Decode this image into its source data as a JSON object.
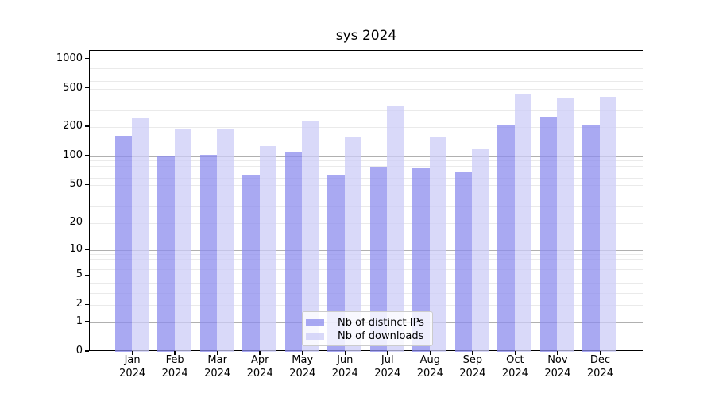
{
  "chart_data": {
    "type": "bar",
    "title": "sys 2024",
    "categories": [
      "Jan",
      "Feb",
      "Mar",
      "Apr",
      "May",
      "Jun",
      "Jul",
      "Aug",
      "Sep",
      "Oct",
      "Nov",
      "Dec"
    ],
    "x_tick_second_line": "2024",
    "series": [
      {
        "name": "Nb of distinct IPs",
        "color": "#8c8cee",
        "alpha": 0.75,
        "values": [
          163,
          100,
          104,
          65,
          109,
          65,
          78,
          75,
          70,
          212,
          257,
          213
        ]
      },
      {
        "name": "Nb of downloads",
        "color": "#ccccf7",
        "alpha": 0.75,
        "values": [
          251,
          188,
          190,
          127,
          230,
          157,
          330,
          158,
          119,
          440,
          400,
          408
        ]
      }
    ],
    "yscale": "log10(1+y)",
    "ylim": [
      0,
      1220
    ],
    "ytick_values": [
      0,
      1,
      2,
      5,
      10,
      20,
      50,
      100,
      200,
      500,
      1000
    ],
    "grid": {
      "major_lines": [
        1,
        10,
        100,
        1000
      ],
      "minor_multiples_per_decade": [
        2,
        3,
        4,
        5,
        6,
        7,
        8,
        9
      ],
      "minor_decades": [
        1,
        10,
        100
      ],
      "major_color": "#b0b0b0",
      "minor_color": "#eaeaea"
    },
    "legend_position": "lower center"
  }
}
